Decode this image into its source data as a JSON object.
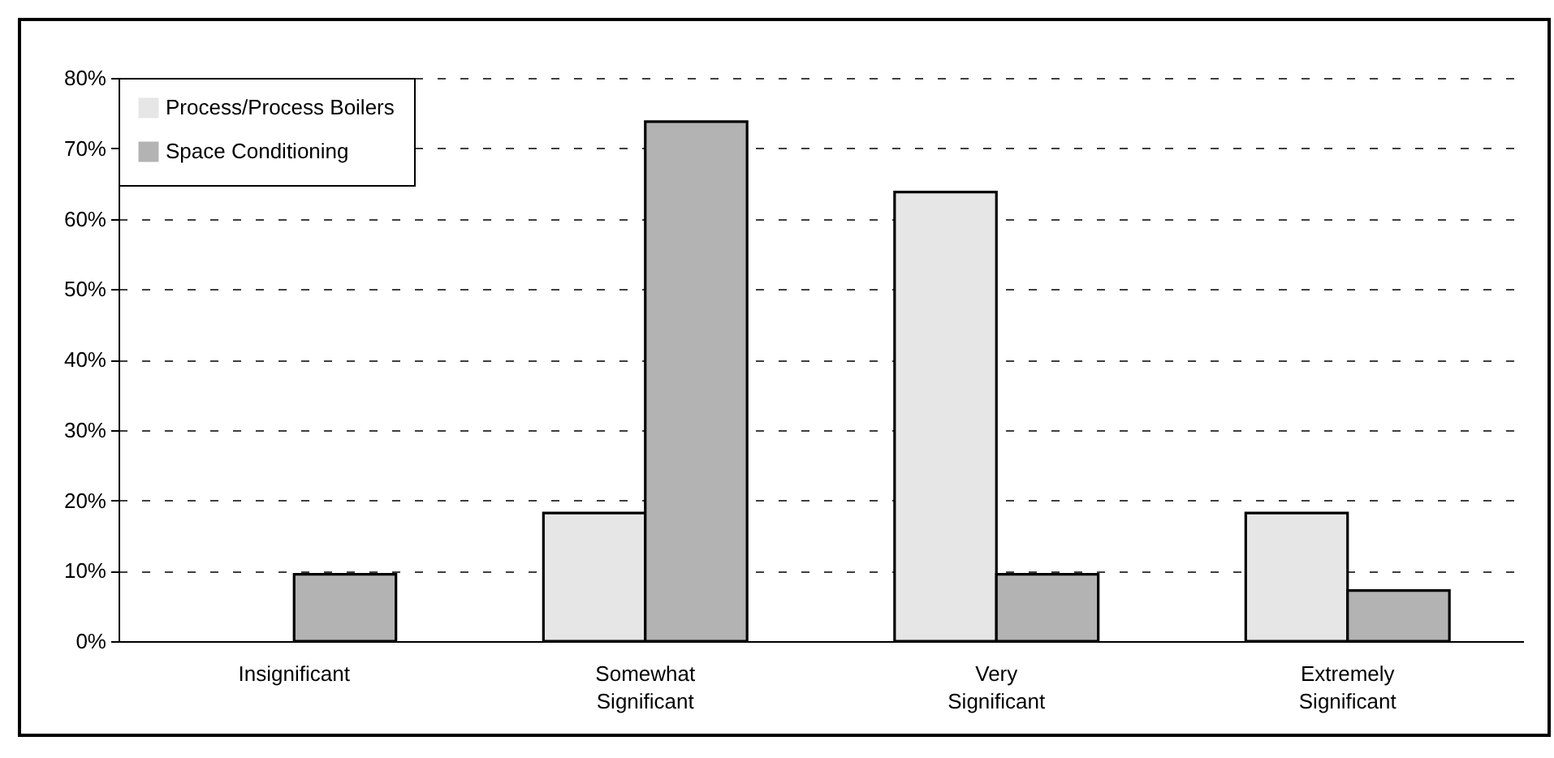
{
  "chart_data": {
    "type": "bar",
    "categories": [
      "Insignificant",
      "Somewhat Significant",
      "Very Significant",
      "Extremely Significant"
    ],
    "series": [
      {
        "name": "Process/Process Boilers",
        "color": "#e6e6e6",
        "values": [
          null,
          18.2,
          63.8,
          18.2
        ]
      },
      {
        "name": "Space Conditioning",
        "color": "#b3b3b3",
        "values": [
          9.5,
          73.8,
          9.5,
          7.2
        ]
      }
    ],
    "ylim": [
      0,
      80
    ],
    "yticks": [
      {
        "value": 0,
        "label": "0%"
      },
      {
        "value": 10,
        "label": "10%"
      },
      {
        "value": 20,
        "label": "20%"
      },
      {
        "value": 30,
        "label": "30%"
      },
      {
        "value": 40,
        "label": "40%"
      },
      {
        "value": 50,
        "label": "50%"
      },
      {
        "value": 60,
        "label": "60%"
      },
      {
        "value": 70,
        "label": "70%"
      },
      {
        "value": 80,
        "label": "80%"
      }
    ],
    "grid": "y",
    "legend": "top left"
  }
}
